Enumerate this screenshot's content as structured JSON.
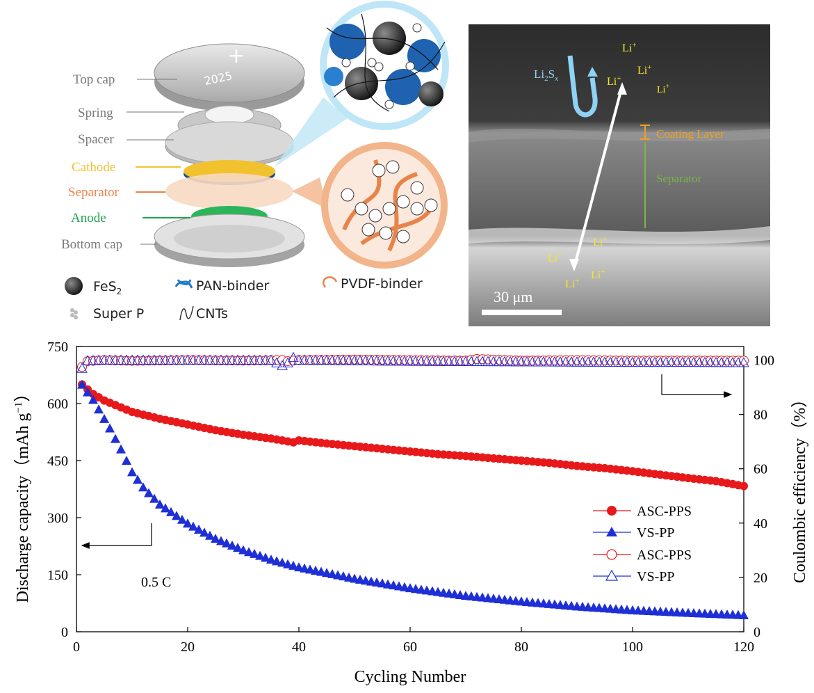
{
  "schematic": {
    "parts": [
      {
        "label": "Top cap",
        "color": "#7a7a7a"
      },
      {
        "label": "Spring",
        "color": "#7a7a7a"
      },
      {
        "label": "Spacer",
        "color": "#7a7a7a"
      },
      {
        "label": "Cathode",
        "color": "#f2c12e"
      },
      {
        "label": "Separator",
        "color": "#e8834a"
      },
      {
        "label": "Anode",
        "color": "#1fa64b"
      },
      {
        "label": "Bottom cap",
        "color": "#7a7a7a"
      }
    ],
    "cap_mark_plus": "+",
    "cap_mark_text": "2025",
    "legend": {
      "fes2": "FeS",
      "fes2_sub": "2",
      "pan_binder": "PAN-binder",
      "pvdf_binder": "PVDF-binder",
      "super_p": "Super P",
      "cnts": "CNTs"
    }
  },
  "sem": {
    "li": "Li",
    "li_sup": "+",
    "polysulfide": {
      "base1": "Li",
      "sub1": "2",
      "base2": "S",
      "sub2": "x"
    },
    "coating_layer_label": "Coating Layer",
    "separator_label": "Separator",
    "scale_bar_label": "30 μm",
    "colors": {
      "coating": "#f0a020",
      "separator": "#7ab648",
      "li": "#f5e62a",
      "polysulfide": "#8fd3f4"
    }
  },
  "chart_data": {
    "type": "scatter",
    "xlabel": "Cycling Number",
    "ylabel": "Discharge capacity（mAh g",
    "ylabel_sup": "−1",
    "ylabel_close": "）",
    "y2label": "Coulombic efficiency（%）",
    "xlim": [
      0,
      120
    ],
    "ylim": [
      0,
      750
    ],
    "y2lim": [
      0,
      105
    ],
    "x_ticks": [
      "0",
      "20",
      "40",
      "60",
      "80",
      "100",
      "120"
    ],
    "y_ticks": [
      "0",
      "150",
      "300",
      "450",
      "600",
      "750"
    ],
    "y2_ticks": [
      "0",
      "20",
      "40",
      "60",
      "80",
      "100"
    ],
    "annotation": "0.5 C",
    "legend_position": "center-right",
    "series": [
      {
        "name": "ASC-PPS",
        "axis": "left",
        "marker": "circle-filled",
        "color": "#e8191b",
        "x": [
          1,
          2,
          3,
          5,
          8,
          10,
          15,
          20,
          25,
          30,
          35,
          39,
          40,
          45,
          50,
          55,
          60,
          65,
          70,
          75,
          80,
          85,
          90,
          95,
          100,
          105,
          110,
          115,
          120
        ],
        "values": [
          650,
          637,
          625,
          608,
          590,
          578,
          560,
          545,
          530,
          518,
          508,
          498,
          503,
          495,
          488,
          481,
          474,
          467,
          462,
          456,
          450,
          444,
          436,
          430,
          422,
          413,
          404,
          396,
          383
        ]
      },
      {
        "name": "VS-PP",
        "axis": "left",
        "marker": "triangle-filled",
        "color": "#1f2fd6",
        "x": [
          1,
          2,
          3,
          4,
          5,
          6,
          8,
          10,
          12,
          15,
          20,
          25,
          30,
          35,
          40,
          50,
          60,
          70,
          80,
          90,
          100,
          110,
          120
        ],
        "values": [
          650,
          630,
          610,
          585,
          560,
          535,
          480,
          420,
          380,
          335,
          285,
          245,
          215,
          190,
          170,
          140,
          115,
          95,
          80,
          67,
          57,
          50,
          44
        ]
      },
      {
        "name": "ASC-PPS",
        "axis": "right",
        "marker": "circle-open",
        "color": "#e8191b",
        "x": [
          1,
          2,
          5,
          10,
          20,
          30,
          37,
          38,
          40,
          50,
          60,
          70,
          72,
          80,
          90,
          100,
          110,
          120
        ],
        "values": [
          97.5,
          99.6,
          100,
          99.7,
          100,
          99.8,
          100,
          99.6,
          100,
          100.2,
          100,
          99.8,
          100.4,
          99.8,
          100,
          99.8,
          99.8,
          99.8
        ]
      },
      {
        "name": "VS-PP",
        "axis": "right",
        "marker": "triangle-open",
        "color": "#1f2fd6",
        "x": [
          1,
          2,
          5,
          10,
          20,
          30,
          35,
          37,
          38,
          39,
          40,
          50,
          60,
          70,
          80,
          90,
          100,
          110,
          120
        ],
        "values": [
          97,
          99.8,
          100,
          100,
          100,
          100,
          100,
          98,
          99,
          101,
          100,
          99.8,
          99.6,
          99.5,
          99.4,
          99.3,
          99.2,
          99.2,
          99.1
        ]
      }
    ]
  }
}
